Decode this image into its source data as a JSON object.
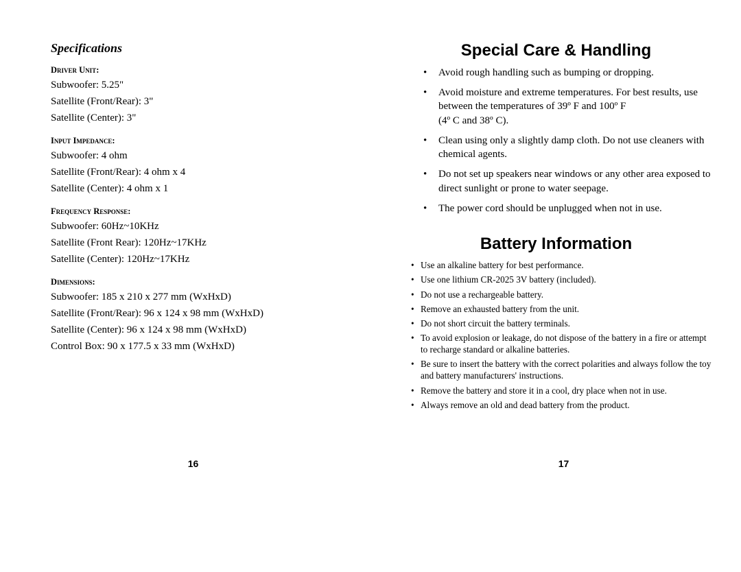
{
  "left": {
    "section_title": "Specifications",
    "driver_unit": {
      "heading": "Driver Unit:",
      "lines": [
        "Subwoofer: 5.25\"",
        "Satellite (Front/Rear): 3\"",
        "Satellite (Center): 3\""
      ]
    },
    "input_impedance": {
      "heading": "Input Impedance:",
      "lines": [
        "Subwoofer: 4 ohm",
        "Satellite (Front/Rear): 4 ohm x 4",
        "Satellite (Center): 4 ohm x 1"
      ]
    },
    "frequency_response": {
      "heading": "Frequency Response:",
      "lines": [
        "Subwoofer: 60Hz~10KHz",
        "Satellite (Front Rear): 120Hz~17KHz",
        "Satellite (Center): 120Hz~17KHz"
      ]
    },
    "dimensions": {
      "heading": "Dimensions:",
      "lines": [
        "Subwoofer: 185 x 210 x 277 mm (WxHxD)",
        "Satellite (Front/Rear): 96 x 124 x 98 mm (WxHxD)",
        "Satellite (Center): 96 x 124 x 98 mm (WxHxD)",
        "Control Box: 90 x 177.5 x 33 mm (WxHxD)"
      ]
    },
    "page_number": "16"
  },
  "right": {
    "care_heading": "Special Care & Handling",
    "care_items": [
      "Avoid rough handling such as bumping or dropping.",
      "Avoid moisture and extreme temperatures. For best results, use between the temperatures of 39º F and 100º F\n(4º C and 38º C).",
      "Clean using only a slightly damp cloth. Do not use cleaners with chemical agents.",
      "Do not set up speakers near windows or any other area exposed to direct sunlight or prone to water seepage.",
      "The power cord should be unplugged when not in use."
    ],
    "battery_heading": "Battery Information",
    "battery_items": [
      "Use an alkaline battery for best performance.",
      "Use one lithium CR-2025 3V battery (included).",
      "Do not use a rechargeable battery.",
      "Remove an exhausted battery from the unit.",
      "Do not short circuit the battery terminals.",
      "To avoid explosion or leakage, do not dispose of the battery in a fire or attempt to recharge standard or alkaline batteries.",
      "Be sure to insert the battery with the correct polarities and always follow the toy and battery manufacturers' instructions.",
      "Remove the battery and store it in a cool, dry place when not in use.",
      "Always remove an old and dead battery from the product."
    ],
    "page_number": "17"
  }
}
